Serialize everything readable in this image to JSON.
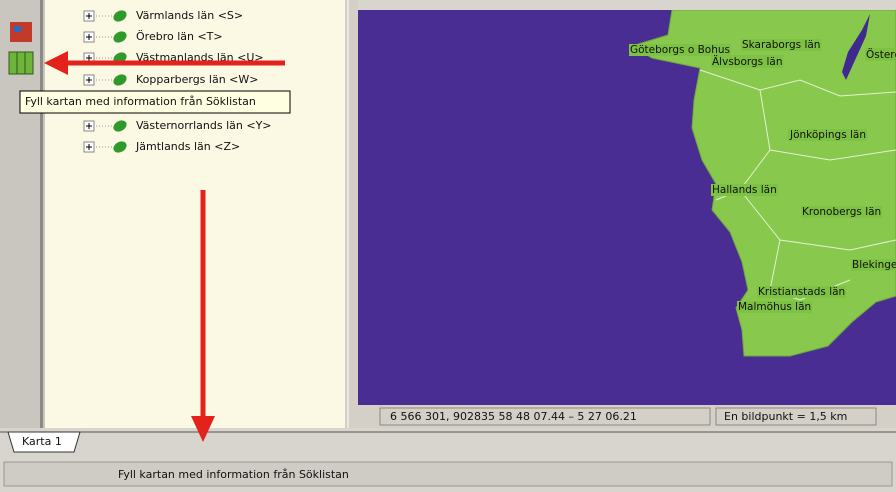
{
  "tree": {
    "items": [
      "Värmlands län <S>",
      "Örebro län <T>",
      "Västmanlands län <U>",
      "Kopparbergs län <W>",
      "Västernorrlands län <Y>",
      "Jämtlands län <Z>"
    ]
  },
  "tooltip": "Fyll kartan med information från Söklistan",
  "map": {
    "labels": [
      "Göteborgs o Bohus",
      "Skaraborgs län",
      "Östergötlands län",
      "Älvsborgs län",
      "Jönköpings län",
      "Hallands län",
      "Kronobergs län",
      "Blekinge län",
      "Kristianstads län",
      "Malmöhus län"
    ]
  },
  "status": {
    "coordinates": "6 566 301, 902835  58 48 07.44 – 5 27 06.21",
    "scale": "En bildpunkt = 1,5 km"
  },
  "tabs": [
    "Karta 1"
  ],
  "statusbar": "Fyll kartan med information från Söklistan"
}
